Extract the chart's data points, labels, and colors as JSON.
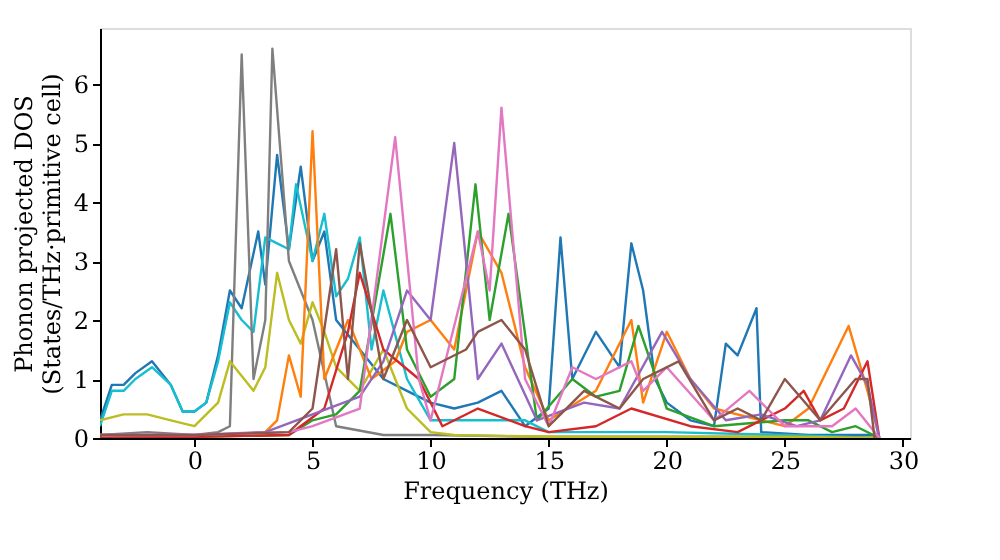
{
  "chart_data": {
    "type": "line",
    "xlabel": "Frequency (THz)",
    "ylabel": "Phonon projected DOS\n(States/THz·primitive cell)",
    "xlim": [
      -4,
      30.3
    ],
    "ylim": [
      0,
      6.95
    ],
    "xticks": [
      0,
      5,
      10,
      15,
      20,
      25,
      30
    ],
    "yticks": [
      0,
      1,
      2,
      3,
      4,
      5,
      6
    ],
    "grid": false,
    "legend": false,
    "marker": "none",
    "line_style": "solid",
    "series": [
      {
        "color": "#1f77b4",
        "x": [
          -4,
          -3.5,
          -3,
          -2.5,
          -1.8,
          -1,
          -0.5,
          0,
          0.5,
          1,
          1.5,
          2,
          2.7,
          3,
          3.5,
          4,
          4.5,
          5,
          5.5,
          6,
          7,
          8,
          9,
          10,
          11,
          12,
          13,
          14,
          15,
          15.5,
          16,
          17,
          18,
          18.5,
          19,
          19.5,
          20,
          21,
          22,
          22.5,
          23,
          23.8,
          24,
          26,
          28.7,
          29
        ],
        "values": [
          0.3,
          0.9,
          0.9,
          1.1,
          1.3,
          0.9,
          0.45,
          0.45,
          0.6,
          1.4,
          2.5,
          2.2,
          3.5,
          2.6,
          4.8,
          3.2,
          4.6,
          3.0,
          3.5,
          2.0,
          1.5,
          1.0,
          0.8,
          0.6,
          0.5,
          0.6,
          0.8,
          0.2,
          0.5,
          3.4,
          1.0,
          1.8,
          1.2,
          3.3,
          2.5,
          1.0,
          0.6,
          0.3,
          0.2,
          1.6,
          1.4,
          2.2,
          0.1,
          0.05,
          0.05,
          0
        ]
      },
      {
        "color": "#17becf",
        "x": [
          -4,
          -3.5,
          -3,
          -2.5,
          -1.8,
          -1,
          -0.5,
          0,
          0.5,
          1,
          1.5,
          2,
          2.5,
          3,
          3.5,
          4,
          4.3,
          5,
          5.5,
          6,
          6.5,
          7,
          7.5,
          8,
          9,
          10,
          12,
          14,
          15,
          20,
          25,
          29
        ],
        "values": [
          0.2,
          0.8,
          0.8,
          1.0,
          1.2,
          0.9,
          0.45,
          0.45,
          0.6,
          1.3,
          2.3,
          2.0,
          1.8,
          3.4,
          3.3,
          3.2,
          4.3,
          3.0,
          3.8,
          2.4,
          2.7,
          3.4,
          1.5,
          2.5,
          1.0,
          0.3,
          0.3,
          0.3,
          0.1,
          0.1,
          0.05,
          0
        ]
      },
      {
        "color": "#7f7f7f",
        "x": [
          -4,
          -2,
          0,
          1,
          1.5,
          2,
          2.5,
          3,
          3.3,
          4,
          5,
          6,
          8,
          10,
          15,
          20,
          25,
          29
        ],
        "values": [
          0.05,
          0.1,
          0.05,
          0.1,
          0.2,
          6.5,
          1.0,
          2.0,
          6.6,
          3.0,
          2.0,
          0.2,
          0.05,
          0.05,
          0.02,
          0.02,
          0.02,
          0
        ]
      },
      {
        "color": "#bcbd22",
        "x": [
          -4,
          -3,
          -2,
          -1,
          0,
          1,
          1.5,
          2.5,
          3,
          3.5,
          4,
          4.5,
          5,
          5.5,
          6,
          7,
          8,
          9,
          10,
          11,
          15,
          20,
          25,
          29
        ],
        "values": [
          0.3,
          0.4,
          0.4,
          0.3,
          0.2,
          0.6,
          1.3,
          0.8,
          1.2,
          2.8,
          2.0,
          1.6,
          2.3,
          1.8,
          1.2,
          0.8,
          1.5,
          0.5,
          0.1,
          0.05,
          0.02,
          0.02,
          0.02,
          0
        ]
      },
      {
        "color": "#ff7f0e",
        "x": [
          -4,
          0,
          3,
          3.5,
          4,
          4.5,
          5,
          5.5,
          6.5,
          7.5,
          8.5,
          9,
          10,
          11,
          12,
          13,
          14,
          15,
          17,
          18.5,
          19,
          20,
          21,
          22,
          24,
          25,
          26,
          27.7,
          28.5,
          29
        ],
        "values": [
          0,
          0.02,
          0.1,
          0.3,
          1.4,
          0.7,
          5.2,
          1.0,
          2.0,
          1.0,
          1.3,
          1.8,
          2.0,
          1.5,
          3.5,
          2.8,
          1.2,
          0.3,
          0.8,
          2.0,
          0.6,
          1.8,
          1.0,
          0.5,
          0.3,
          0.2,
          0.5,
          1.9,
          0.8,
          0
        ]
      },
      {
        "color": "#2ca02c",
        "x": [
          -4,
          0,
          4,
          5,
          6,
          7,
          8.3,
          9,
          10,
          11,
          11.9,
          12.5,
          13.3,
          14.5,
          16,
          17,
          18,
          18.8,
          20,
          22,
          25,
          26,
          27,
          28,
          29
        ],
        "values": [
          0,
          0.02,
          0.05,
          0.3,
          0.4,
          0.8,
          3.8,
          1.5,
          0.7,
          1.0,
          4.3,
          2.0,
          3.8,
          0.3,
          1.0,
          0.7,
          0.8,
          1.9,
          0.5,
          0.2,
          0.3,
          0.3,
          0.1,
          0.2,
          0
        ]
      },
      {
        "color": "#d62728",
        "x": [
          -4,
          0,
          4,
          5.5,
          6.5,
          7,
          8,
          9.5,
          10.5,
          12,
          14,
          15,
          17,
          18.5,
          21,
          23,
          25,
          25.8,
          26.5,
          27.5,
          28.5,
          29
        ],
        "values": [
          0,
          0.02,
          0.05,
          0.5,
          1.8,
          2.8,
          1.5,
          1.0,
          0.2,
          0.5,
          0.2,
          0.1,
          0.2,
          0.5,
          0.2,
          0.1,
          0.5,
          0.8,
          0.3,
          0.5,
          1.3,
          0
        ]
      },
      {
        "color": "#9467bd",
        "x": [
          -4,
          0,
          3,
          5,
          7,
          8,
          9,
          10,
          11,
          12,
          13,
          14.5,
          16.5,
          18,
          19.8,
          21,
          22.5,
          24,
          25.5,
          26.5,
          27.8,
          28.5,
          29
        ],
        "values": [
          0.05,
          0.05,
          0.1,
          0.4,
          0.7,
          1.3,
          2.5,
          2.0,
          5.0,
          1.0,
          1.6,
          0.3,
          0.6,
          0.5,
          1.8,
          1.0,
          0.3,
          0.4,
          0.2,
          0.3,
          1.4,
          0.9,
          0
        ]
      },
      {
        "color": "#e377c2",
        "x": [
          -4,
          0,
          4,
          5,
          7,
          8.5,
          9.5,
          10,
          12,
          12.5,
          13,
          14,
          15,
          16,
          17,
          18.5,
          19,
          20,
          22,
          23.5,
          25,
          27,
          28,
          29
        ],
        "values": [
          0.05,
          0.05,
          0.1,
          0.2,
          0.5,
          5.1,
          1.0,
          0.3,
          3.5,
          2.5,
          5.6,
          1.0,
          0.2,
          1.2,
          1.0,
          1.3,
          0.8,
          1.2,
          0.3,
          0.8,
          0.2,
          0.2,
          0.5,
          0
        ]
      },
      {
        "color": "#8c564b",
        "x": [
          -4,
          0,
          4,
          5,
          6,
          6.5,
          7,
          8,
          9,
          10,
          11.5,
          12,
          13,
          14,
          15,
          16.5,
          18,
          19,
          20.5,
          22,
          23,
          24,
          25,
          26.5,
          28,
          28.5,
          28.8
        ],
        "values": [
          0.05,
          0.05,
          0.1,
          0.5,
          3.2,
          1.0,
          3.3,
          1.0,
          2.0,
          1.2,
          1.5,
          1.8,
          2.0,
          1.5,
          0.2,
          0.8,
          0.5,
          1.0,
          1.3,
          0.3,
          0.5,
          0.3,
          1.0,
          0.3,
          1.0,
          1.0,
          0
        ]
      }
    ]
  }
}
